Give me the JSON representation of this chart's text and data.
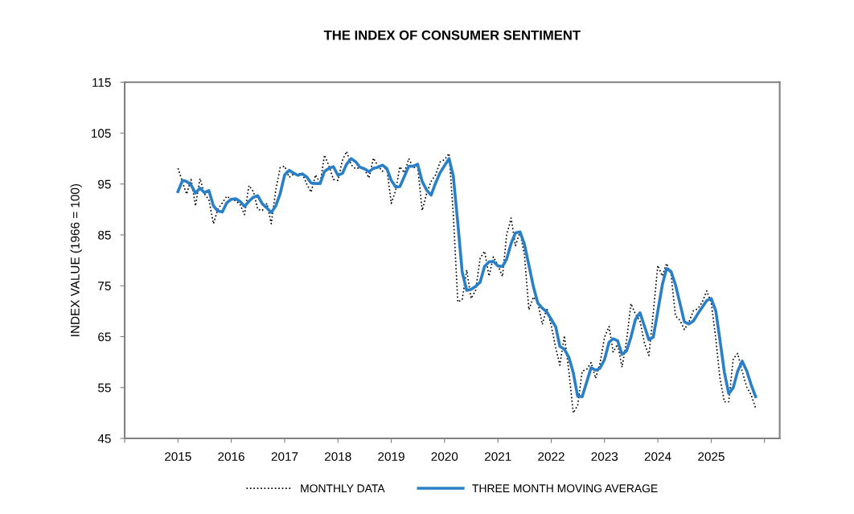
{
  "chart_data": {
    "type": "line",
    "title": "THE INDEX OF CONSUMER SENTIMENT",
    "ylabel": "INDEX VALUE (1966 = 100)",
    "x": [
      "2015-01",
      "2015-02",
      "2015-03",
      "2015-04",
      "2015-05",
      "2015-06",
      "2015-07",
      "2015-08",
      "2015-09",
      "2015-10",
      "2015-11",
      "2015-12",
      "2016-01",
      "2016-02",
      "2016-03",
      "2016-04",
      "2016-05",
      "2016-06",
      "2016-07",
      "2016-08",
      "2016-09",
      "2016-10",
      "2016-11",
      "2016-12",
      "2017-01",
      "2017-02",
      "2017-03",
      "2017-04",
      "2017-05",
      "2017-06",
      "2017-07",
      "2017-08",
      "2017-09",
      "2017-10",
      "2017-11",
      "2017-12",
      "2018-01",
      "2018-02",
      "2018-03",
      "2018-04",
      "2018-05",
      "2018-06",
      "2018-07",
      "2018-08",
      "2018-09",
      "2018-10",
      "2018-11",
      "2018-12",
      "2019-01",
      "2019-02",
      "2019-03",
      "2019-04",
      "2019-05",
      "2019-06",
      "2019-07",
      "2019-08",
      "2019-09",
      "2019-10",
      "2019-11",
      "2019-12",
      "2020-01",
      "2020-02",
      "2020-03",
      "2020-04",
      "2020-05",
      "2020-06",
      "2020-07",
      "2020-08",
      "2020-09",
      "2020-10",
      "2020-11",
      "2020-12",
      "2021-01",
      "2021-02",
      "2021-03",
      "2021-04",
      "2021-05",
      "2021-06",
      "2021-07",
      "2021-08",
      "2021-09",
      "2021-10",
      "2021-11",
      "2021-12",
      "2022-01",
      "2022-02",
      "2022-03",
      "2022-04",
      "2022-05",
      "2022-06",
      "2022-07",
      "2022-08",
      "2022-09",
      "2022-10",
      "2022-11",
      "2022-12",
      "2023-01",
      "2023-02",
      "2023-03",
      "2023-04",
      "2023-05",
      "2023-06",
      "2023-07",
      "2023-08",
      "2023-09",
      "2023-10",
      "2023-11",
      "2023-12",
      "2024-01",
      "2024-02",
      "2024-03",
      "2024-04",
      "2024-05",
      "2024-06",
      "2024-07",
      "2024-08",
      "2024-09",
      "2024-10",
      "2024-11",
      "2024-12",
      "2025-01",
      "2025-02",
      "2025-03",
      "2025-04",
      "2025-05",
      "2025-06",
      "2025-07",
      "2025-08",
      "2025-09",
      "2025-10",
      "2025-11"
    ],
    "series": [
      {
        "name": "MONTHLY DATA",
        "color": "#000000",
        "line_style": "dotted",
        "values": [
          98.1,
          95.4,
          93.0,
          95.9,
          90.7,
          96.1,
          93.1,
          91.9,
          87.2,
          90.0,
          91.3,
          92.6,
          92.0,
          91.7,
          91.0,
          89.0,
          94.7,
          93.5,
          90.0,
          89.8,
          91.2,
          87.2,
          93.8,
          98.2,
          98.5,
          96.3,
          96.9,
          97.0,
          97.1,
          95.0,
          93.4,
          96.8,
          95.1,
          100.7,
          98.5,
          95.9,
          95.7,
          99.7,
          101.4,
          98.8,
          98.0,
          98.2,
          97.9,
          96.2,
          100.1,
          98.6,
          97.5,
          98.3,
          91.2,
          93.8,
          98.4,
          97.2,
          100.0,
          98.2,
          98.4,
          89.8,
          93.2,
          95.5,
          96.8,
          99.3,
          99.8,
          101.0,
          89.1,
          71.8,
          72.3,
          78.1,
          72.5,
          74.1,
          80.4,
          81.8,
          76.9,
          80.7,
          79.0,
          76.8,
          84.9,
          88.3,
          82.9,
          85.5,
          81.2,
          70.3,
          72.8,
          71.7,
          67.4,
          70.6,
          67.2,
          62.8,
          59.4,
          65.2,
          58.4,
          50.0,
          51.5,
          58.2,
          58.6,
          59.9,
          56.8,
          59.7,
          64.9,
          67.0,
          62.0,
          63.5,
          59.0,
          64.2,
          71.5,
          69.4,
          68.1,
          63.8,
          61.3,
          69.7,
          79.0,
          76.9,
          79.4,
          77.2,
          69.1,
          68.2,
          66.4,
          67.9,
          70.1,
          70.5,
          71.8,
          74.0,
          71.7,
          64.7,
          57.0,
          52.2,
          52.2,
          60.7,
          61.7,
          58.2,
          55.1,
          53.6,
          51.0
        ]
      },
      {
        "name": "THREE MONTH MOVING AVERAGE",
        "color": "#2a80c8",
        "line_style": "solid",
        "values": [
          93.5,
          95.7,
          95.5,
          94.8,
          93.2,
          94.2,
          93.3,
          93.7,
          90.7,
          89.7,
          89.5,
          91.3,
          92.0,
          92.1,
          91.6,
          90.6,
          91.6,
          92.4,
          92.7,
          91.1,
          90.3,
          89.4,
          90.7,
          93.1,
          96.8,
          97.7,
          97.2,
          96.7,
          97.0,
          96.4,
          95.2,
          95.1,
          95.1,
          97.5,
          98.1,
          98.4,
          96.7,
          97.1,
          98.9,
          100.0,
          99.4,
          98.3,
          98.0,
          97.4,
          98.1,
          98.3,
          98.7,
          98.1,
          95.7,
          94.4,
          94.5,
          96.5,
          98.5,
          98.5,
          98.9,
          95.5,
          93.8,
          92.8,
          95.2,
          97.2,
          98.6,
          100.0,
          96.6,
          87.3,
          77.7,
          74.1,
          74.3,
          74.9,
          75.7,
          78.8,
          79.7,
          79.8,
          78.9,
          78.8,
          80.2,
          83.3,
          85.4,
          85.6,
          83.2,
          79.0,
          74.8,
          71.6,
          70.6,
          69.9,
          68.4,
          66.9,
          63.1,
          62.5,
          61.0,
          57.9,
          53.3,
          53.2,
          56.1,
          58.9,
          58.4,
          58.8,
          60.5,
          63.9,
          64.6,
          64.2,
          61.5,
          62.2,
          64.9,
          68.4,
          69.7,
          67.1,
          64.4,
          64.9,
          70.0,
          75.2,
          78.4,
          77.8,
          75.2,
          71.5,
          67.9,
          67.5,
          68.1,
          69.5,
          70.8,
          72.1,
          72.5,
          70.1,
          64.5,
          58.0,
          53.8,
          55.0,
          58.2,
          60.2,
          58.3,
          55.6,
          53.2
        ]
      }
    ],
    "xlim": [
      "2014-01",
      "2026-04-15"
    ],
    "xticks": [
      {
        "value": "2014-01",
        "label": null
      },
      {
        "value": "2015-01",
        "label": "2015"
      },
      {
        "value": "2016-01",
        "label": "2016"
      },
      {
        "value": "2017-01",
        "label": "2017"
      },
      {
        "value": "2018-01",
        "label": "2018"
      },
      {
        "value": "2019-01",
        "label": "2019"
      },
      {
        "value": "2020-01",
        "label": "2020"
      },
      {
        "value": "2021-01",
        "label": "2021"
      },
      {
        "value": "2022-01",
        "label": "2022"
      },
      {
        "value": "2023-01",
        "label": "2023"
      },
      {
        "value": "2024-01",
        "label": "2024"
      },
      {
        "value": "2025-01",
        "label": "2025"
      },
      {
        "value": "2026-01",
        "label": null
      }
    ],
    "ylim": [
      45,
      115
    ],
    "yticks": [
      45,
      55,
      65,
      75,
      85,
      95,
      105,
      115
    ],
    "grid": false,
    "legend": "bottom"
  }
}
